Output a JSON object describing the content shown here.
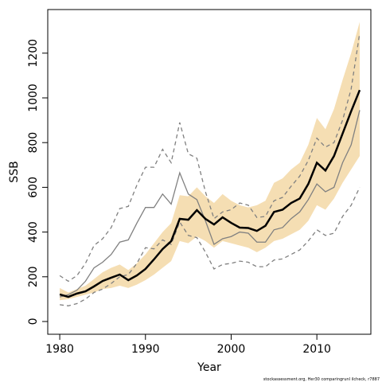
{
  "chart_data": {
    "type": "line",
    "x": [
      1980,
      1981,
      1982,
      1983,
      1984,
      1985,
      1986,
      1987,
      1988,
      1989,
      1990,
      1991,
      1992,
      1993,
      1994,
      1995,
      1996,
      1997,
      1998,
      1999,
      2000,
      2001,
      2002,
      2003,
      2004,
      2005,
      2006,
      2007,
      2008,
      2009,
      2010,
      2011,
      2012,
      2013,
      2014,
      2015
    ],
    "band": {
      "color": "#f5deb3",
      "lower": [
        95,
        100,
        110,
        120,
        130,
        145,
        150,
        160,
        150,
        165,
        185,
        210,
        240,
        270,
        360,
        350,
        380,
        360,
        330,
        360,
        350,
        340,
        330,
        310,
        330,
        360,
        370,
        390,
        410,
        450,
        520,
        500,
        550,
        620,
        680,
        740
      ],
      "upper": [
        150,
        130,
        145,
        160,
        190,
        220,
        240,
        255,
        230,
        260,
        300,
        350,
        400,
        440,
        565,
        560,
        600,
        560,
        530,
        570,
        540,
        520,
        510,
        520,
        540,
        620,
        640,
        680,
        710,
        790,
        910,
        860,
        950,
        1080,
        1200,
        1340
      ]
    },
    "series": [
      {
        "color": "#808080",
        "dashed": true,
        "width": 1.3,
        "values": [
          205,
          180,
          205,
          260,
          340,
          370,
          420,
          505,
          515,
          610,
          690,
          690,
          770,
          710,
          890,
          750,
          730,
          580,
          460,
          490,
          500,
          530,
          520,
          465,
          470,
          540,
          555,
          605,
          650,
          720,
          820,
          780,
          800,
          900,
          1040,
          1290
        ]
      },
      {
        "color": "#808080",
        "dashed": true,
        "width": 1.3,
        "values": [
          75,
          70,
          80,
          100,
          130,
          145,
          170,
          200,
          210,
          260,
          330,
          325,
          365,
          345,
          445,
          385,
          375,
          310,
          235,
          255,
          260,
          270,
          265,
          245,
          245,
          275,
          280,
          300,
          320,
          360,
          410,
          385,
          395,
          470,
          520,
          600
        ]
      },
      {
        "color": "#808080",
        "dashed": false,
        "width": 1.3,
        "values": [
          110,
          120,
          140,
          180,
          240,
          265,
          300,
          355,
          365,
          440,
          510,
          510,
          570,
          525,
          665,
          570,
          545,
          450,
          345,
          370,
          380,
          400,
          395,
          355,
          355,
          410,
          420,
          460,
          490,
          545,
          615,
          580,
          600,
          710,
          790,
          945
        ]
      },
      {
        "color": "#000000",
        "dashed": false,
        "width": 2.5,
        "values": [
          121,
          110,
          125,
          135,
          157,
          181,
          196,
          210,
          185,
          206,
          235,
          278,
          324,
          359,
          459,
          455,
          498,
          459,
          434,
          466,
          441,
          420,
          418,
          405,
          428,
          490,
          500,
          530,
          550,
          615,
          710,
          675,
          740,
          840,
          940,
          1035
        ]
      }
    ],
    "xlabel": "Year",
    "ylabel": "SSB",
    "xlim": [
      1978.6,
      2016.3
    ],
    "xticks": [
      1980,
      1990,
      2000,
      2010
    ],
    "ylim": [
      -57,
      1395
    ],
    "yticks": [
      0,
      200,
      400,
      600,
      800,
      1000,
      1200
    ],
    "footnote": "stockassessment.org, Her30 comparingrunI ilcheck, r7887"
  }
}
